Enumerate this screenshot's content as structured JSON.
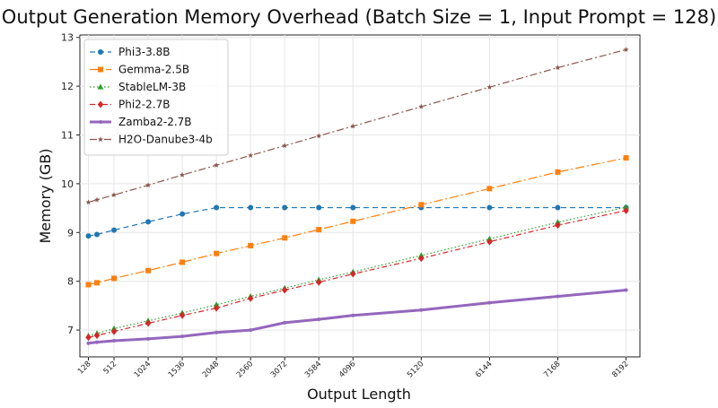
{
  "chart_data": {
    "type": "line",
    "title": "Output Generation Memory Overhead (Batch Size = 1, Input Prompt = 128)",
    "xlabel": "Output Length",
    "ylabel": "Memory (GB)",
    "x": [
      128,
      256,
      512,
      1024,
      1536,
      2048,
      2560,
      3072,
      3584,
      4096,
      5120,
      6144,
      7168,
      8192
    ],
    "x_tick_labels": [
      "128",
      "512",
      "1024",
      "1536",
      "2048",
      "2560",
      "3072",
      "3584",
      "4096",
      "5120",
      "6144",
      "7168",
      "8192"
    ],
    "x_tick_values": [
      128,
      512,
      1024,
      1536,
      2048,
      2560,
      3072,
      3584,
      4096,
      5120,
      6144,
      7168,
      8192
    ],
    "xlim": [
      0,
      8400
    ],
    "ylim": [
      6.45,
      13.05
    ],
    "y_ticks": [
      7,
      8,
      9,
      10,
      11,
      12,
      13
    ],
    "grid": true,
    "legend_position": "top-left",
    "series": [
      {
        "name": "Phi3-3.8B",
        "color": "#1f77b4",
        "marker": "circle",
        "dash": "6,4",
        "values": [
          8.93,
          8.96,
          9.05,
          9.22,
          9.38,
          9.51,
          9.51,
          9.51,
          9.51,
          9.51,
          9.51,
          9.51,
          9.51,
          9.51
        ]
      },
      {
        "name": "Gemma-2.5B",
        "color": "#ff7f0e",
        "marker": "square",
        "dash": "10,3,2,3",
        "values": [
          7.93,
          7.97,
          8.06,
          8.22,
          8.39,
          8.57,
          8.73,
          8.89,
          9.06,
          9.23,
          9.57,
          9.9,
          10.24,
          10.53
        ]
      },
      {
        "name": "StableLM-3B",
        "color": "#2ca02c",
        "marker": "triangle",
        "dash": "1.5,2.5",
        "values": [
          6.88,
          6.93,
          7.03,
          7.19,
          7.35,
          7.52,
          7.69,
          7.86,
          8.03,
          8.19,
          8.53,
          8.87,
          9.21,
          9.52
        ]
      },
      {
        "name": "Phi2-2.7B",
        "color": "#d62728",
        "marker": "diamond",
        "dash": "6,3,2,3",
        "values": [
          6.85,
          6.89,
          6.97,
          7.14,
          7.3,
          7.45,
          7.65,
          7.82,
          7.98,
          8.15,
          8.47,
          8.81,
          9.15,
          9.45
        ]
      },
      {
        "name": "Zamba2-2.7B",
        "color": "#9467bd",
        "marker": "small-circle",
        "dash": "",
        "values": [
          6.73,
          6.75,
          6.78,
          6.82,
          6.87,
          6.95,
          7.0,
          7.15,
          7.22,
          7.3,
          7.41,
          7.56,
          7.69,
          7.82
        ]
      },
      {
        "name": "H2O-Danube3-4b",
        "color": "#8c564b",
        "marker": "star",
        "dash": "8,3,2,3",
        "values": [
          9.62,
          9.67,
          9.77,
          9.97,
          10.18,
          10.38,
          10.58,
          10.78,
          10.98,
          11.18,
          11.58,
          11.98,
          12.38,
          12.75
        ]
      }
    ]
  }
}
